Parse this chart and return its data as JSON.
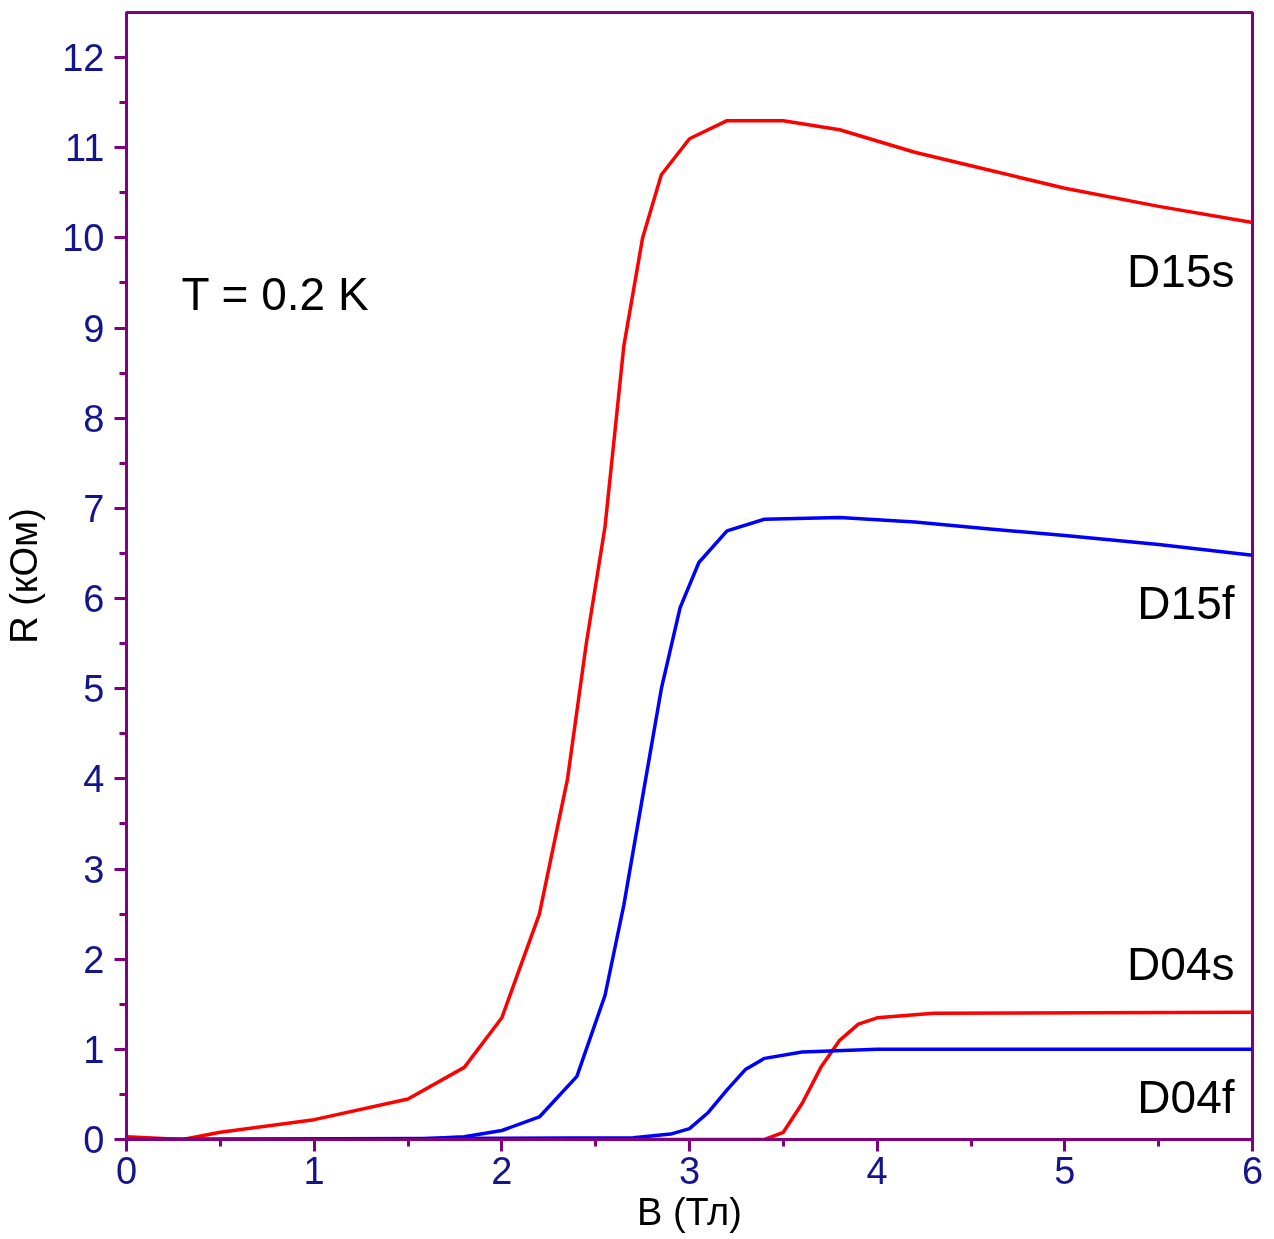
{
  "chart_data": {
    "type": "line",
    "xlabel": "B (Тл)",
    "ylabel": "R (кОм)",
    "xlim": [
      0,
      6
    ],
    "ylim": [
      0,
      12.5
    ],
    "xticks": [
      0,
      1,
      2,
      3,
      4,
      5,
      6
    ],
    "yticks": [
      0,
      1,
      2,
      3,
      4,
      5,
      6,
      7,
      8,
      9,
      10,
      11,
      12
    ],
    "grid": false,
    "marker": "none",
    "line_style": "solid",
    "annotations": [
      "T = 0.2 K"
    ],
    "series": [
      {
        "name": "D15s",
        "color": "#ff0000",
        "x": [
          0,
          0.3,
          0.5,
          1,
          1.5,
          1.8,
          2.0,
          2.2,
          2.35,
          2.45,
          2.55,
          2.65,
          2.75,
          2.85,
          3.0,
          3.2,
          3.5,
          3.8,
          4.2,
          4.6,
          5.0,
          5.5,
          6.0
        ],
        "values": [
          0.03,
          0,
          0.08,
          0.22,
          0.45,
          0.8,
          1.35,
          2.5,
          4.0,
          5.5,
          6.8,
          8.8,
          10.0,
          10.7,
          11.1,
          11.3,
          11.3,
          11.2,
          10.95,
          10.75,
          10.55,
          10.35,
          10.17
        ]
      },
      {
        "name": "D15f",
        "color": "#0000ff",
        "x": [
          0,
          1.5,
          1.8,
          2.0,
          2.2,
          2.4,
          2.55,
          2.65,
          2.75,
          2.85,
          2.95,
          3.05,
          3.2,
          3.4,
          3.8,
          4.2,
          4.6,
          5.0,
          5.5,
          6.0
        ],
        "values": [
          0,
          0,
          0.03,
          0.1,
          0.25,
          0.7,
          1.6,
          2.6,
          3.8,
          5.0,
          5.9,
          6.4,
          6.75,
          6.88,
          6.9,
          6.85,
          6.77,
          6.7,
          6.6,
          6.48
        ]
      },
      {
        "name": "D04s",
        "color": "#ff0000",
        "x": [
          0,
          3.4,
          3.5,
          3.6,
          3.7,
          3.8,
          3.9,
          4.0,
          4.3,
          6.0
        ],
        "values": [
          0,
          0,
          0.08,
          0.4,
          0.8,
          1.1,
          1.28,
          1.35,
          1.4,
          1.41
        ]
      },
      {
        "name": "D04f",
        "color": "#0000ff",
        "x": [
          0,
          2.7,
          2.9,
          3.0,
          3.1,
          3.2,
          3.3,
          3.4,
          3.6,
          4.0,
          6.0
        ],
        "values": [
          0,
          0.02,
          0.06,
          0.12,
          0.3,
          0.55,
          0.78,
          0.9,
          0.97,
          1.0,
          1.0
        ]
      }
    ]
  }
}
